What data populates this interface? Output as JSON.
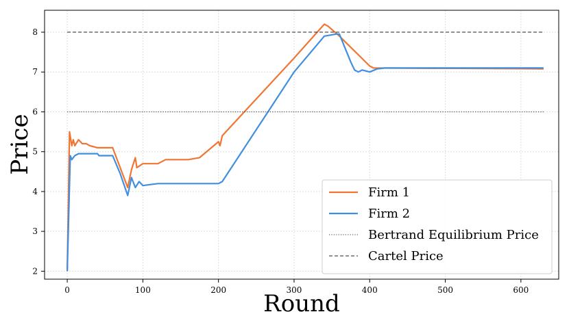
{
  "chart_data": {
    "type": "line",
    "title": "",
    "xlabel": "Round",
    "ylabel": "Price",
    "xlim": [
      -30,
      650
    ],
    "ylim": [
      1.8,
      8.55
    ],
    "xticks": [
      0,
      100,
      200,
      300,
      400,
      500,
      600
    ],
    "yticks": [
      2,
      3,
      4,
      5,
      6,
      7,
      8
    ],
    "grid": true,
    "legend_position": "lower-right",
    "series": [
      {
        "name": "Firm 1",
        "color": "#f07532",
        "style": "solid",
        "points": [
          [
            0,
            2.0
          ],
          [
            3,
            5.5
          ],
          [
            6,
            5.15
          ],
          [
            8,
            5.3
          ],
          [
            10,
            5.15
          ],
          [
            15,
            5.3
          ],
          [
            20,
            5.2
          ],
          [
            25,
            5.2
          ],
          [
            30,
            5.15
          ],
          [
            40,
            5.1
          ],
          [
            60,
            5.1
          ],
          [
            80,
            4.1
          ],
          [
            85,
            4.55
          ],
          [
            90,
            4.85
          ],
          [
            92,
            4.6
          ],
          [
            100,
            4.7
          ],
          [
            120,
            4.7
          ],
          [
            130,
            4.8
          ],
          [
            160,
            4.8
          ],
          [
            175,
            4.85
          ],
          [
            200,
            5.25
          ],
          [
            202,
            5.15
          ],
          [
            205,
            5.4
          ],
          [
            300,
            7.35
          ],
          [
            340,
            8.2
          ],
          [
            345,
            8.15
          ],
          [
            360,
            7.9
          ],
          [
            400,
            7.15
          ],
          [
            405,
            7.1
          ],
          [
            630,
            7.08
          ]
        ]
      },
      {
        "name": "Firm 2",
        "color": "#3f8ee0",
        "style": "solid",
        "points": [
          [
            0,
            2.0
          ],
          [
            4,
            4.9
          ],
          [
            6,
            4.8
          ],
          [
            10,
            4.9
          ],
          [
            15,
            4.95
          ],
          [
            40,
            4.95
          ],
          [
            42,
            4.9
          ],
          [
            60,
            4.9
          ],
          [
            70,
            4.45
          ],
          [
            80,
            3.9
          ],
          [
            85,
            4.35
          ],
          [
            90,
            4.1
          ],
          [
            95,
            4.25
          ],
          [
            100,
            4.15
          ],
          [
            120,
            4.2
          ],
          [
            140,
            4.2
          ],
          [
            200,
            4.2
          ],
          [
            205,
            4.25
          ],
          [
            300,
            7.0
          ],
          [
            340,
            7.9
          ],
          [
            355,
            7.95
          ],
          [
            360,
            7.95
          ],
          [
            375,
            7.25
          ],
          [
            380,
            7.05
          ],
          [
            385,
            7.0
          ],
          [
            390,
            7.05
          ],
          [
            400,
            7.0
          ],
          [
            410,
            7.08
          ],
          [
            420,
            7.1
          ],
          [
            630,
            7.1
          ]
        ]
      },
      {
        "name": "Bertrand Equilibrium Price",
        "color": "#333333",
        "style": "dotted",
        "points": [
          [
            0,
            6.0
          ],
          [
            630,
            6.0
          ]
        ]
      },
      {
        "name": "Cartel Price",
        "color": "#222222",
        "style": "dashed",
        "points": [
          [
            0,
            8.0
          ],
          [
            630,
            8.0
          ]
        ]
      }
    ]
  }
}
